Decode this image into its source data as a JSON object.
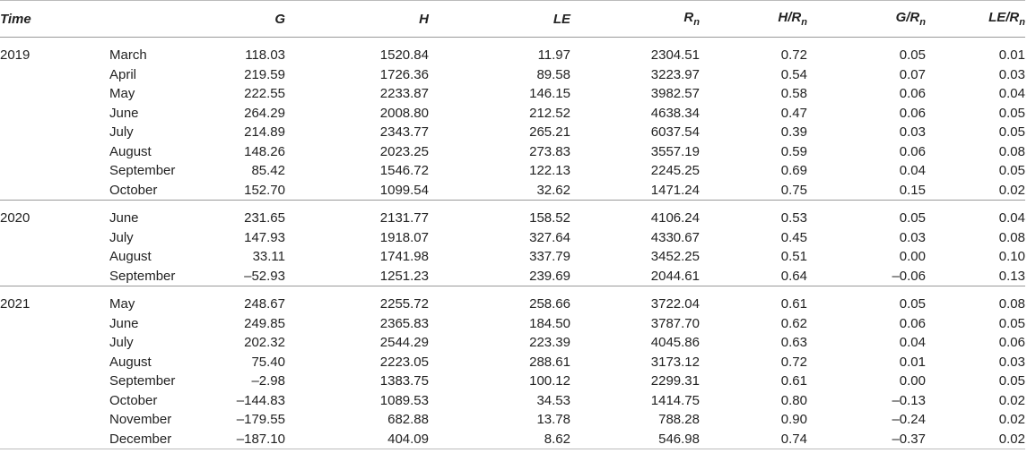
{
  "table": {
    "header": [
      {
        "text": "Time"
      },
      {
        "text": "G"
      },
      {
        "text": "H"
      },
      {
        "text": "LE"
      },
      {
        "text": "R",
        "sub": "n"
      },
      {
        "text": "H/R",
        "sub": "n"
      },
      {
        "text": "G/R",
        "sub": "n"
      },
      {
        "text": "LE/R",
        "sub": "n"
      }
    ],
    "groups": [
      {
        "year": "2019",
        "rows": [
          [
            "March",
            "118.03",
            "1520.84",
            "11.97",
            "2304.51",
            "0.72",
            "0.05",
            "0.01"
          ],
          [
            "April",
            "219.59",
            "1726.36",
            "89.58",
            "3223.97",
            "0.54",
            "0.07",
            "0.03"
          ],
          [
            "May",
            "222.55",
            "2233.87",
            "146.15",
            "3982.57",
            "0.58",
            "0.06",
            "0.04"
          ],
          [
            "June",
            "264.29",
            "2008.80",
            "212.52",
            "4638.34",
            "0.47",
            "0.06",
            "0.05"
          ],
          [
            "July",
            "214.89",
            "2343.77",
            "265.21",
            "6037.54",
            "0.39",
            "0.03",
            "0.05"
          ],
          [
            "August",
            "148.26",
            "2023.25",
            "273.83",
            "3557.19",
            "0.59",
            "0.06",
            "0.08"
          ],
          [
            "September",
            "85.42",
            "1546.72",
            "122.13",
            "2245.25",
            "0.69",
            "0.04",
            "0.05"
          ],
          [
            "October",
            "152.70",
            "1099.54",
            "32.62",
            "1471.24",
            "0.75",
            "0.15",
            "0.02"
          ]
        ]
      },
      {
        "year": "2020",
        "rows": [
          [
            "June",
            "231.65",
            "2131.77",
            "158.52",
            "4106.24",
            "0.53",
            "0.05",
            "0.04"
          ],
          [
            "July",
            "147.93",
            "1918.07",
            "327.64",
            "4330.67",
            "0.45",
            "0.03",
            "0.08"
          ],
          [
            "August",
            "33.11",
            "1741.98",
            "337.79",
            "3452.25",
            "0.51",
            "0.00",
            "0.10"
          ],
          [
            "September",
            "–52.93",
            "1251.23",
            "239.69",
            "2044.61",
            "0.64",
            "–0.06",
            "0.13"
          ]
        ]
      },
      {
        "year": "2021",
        "rows": [
          [
            "May",
            "248.67",
            "2255.72",
            "258.66",
            "3722.04",
            "0.61",
            "0.05",
            "0.08"
          ],
          [
            "June",
            "249.85",
            "2365.83",
            "184.50",
            "3787.70",
            "0.62",
            "0.06",
            "0.05"
          ],
          [
            "July",
            "202.32",
            "2544.29",
            "223.39",
            "4045.86",
            "0.63",
            "0.04",
            "0.06"
          ],
          [
            "August",
            "75.40",
            "2223.05",
            "288.61",
            "3173.12",
            "0.72",
            "0.01",
            "0.03"
          ],
          [
            "September",
            "–2.98",
            "1383.75",
            "100.12",
            "2299.31",
            "0.61",
            "0.00",
            "0.05"
          ],
          [
            "October",
            "–144.83",
            "1089.53",
            "34.53",
            "1414.75",
            "0.80",
            "–0.13",
            "0.02"
          ],
          [
            "November",
            "–179.55",
            "682.88",
            "13.78",
            "788.28",
            "0.90",
            "–0.24",
            "0.02"
          ],
          [
            "December",
            "–187.10",
            "404.09",
            "8.62",
            "546.98",
            "0.74",
            "–0.37",
            "0.02"
          ]
        ]
      }
    ]
  }
}
